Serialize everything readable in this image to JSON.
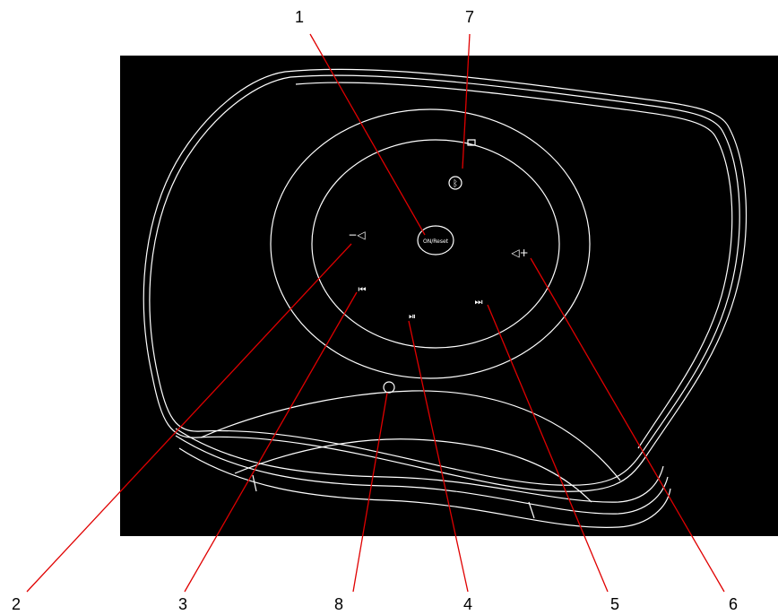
{
  "diagram": {
    "background_color": "#000000",
    "line_color": "#ffffff",
    "leader_color": "#e00000",
    "center_button_text": "ON/Reset",
    "callouts": [
      {
        "id": "1",
        "label": "1",
        "part": "power-reset-button"
      },
      {
        "id": "2",
        "label": "2",
        "part": "volume-down-button"
      },
      {
        "id": "3",
        "label": "3",
        "part": "previous-track-button"
      },
      {
        "id": "4",
        "label": "4",
        "part": "play-pause-button"
      },
      {
        "id": "5",
        "label": "5",
        "part": "next-track-button"
      },
      {
        "id": "6",
        "label": "6",
        "part": "volume-up-button"
      },
      {
        "id": "7",
        "label": "7",
        "part": "bluetooth-button"
      },
      {
        "id": "8",
        "label": "8",
        "part": "indicator-light"
      }
    ]
  }
}
